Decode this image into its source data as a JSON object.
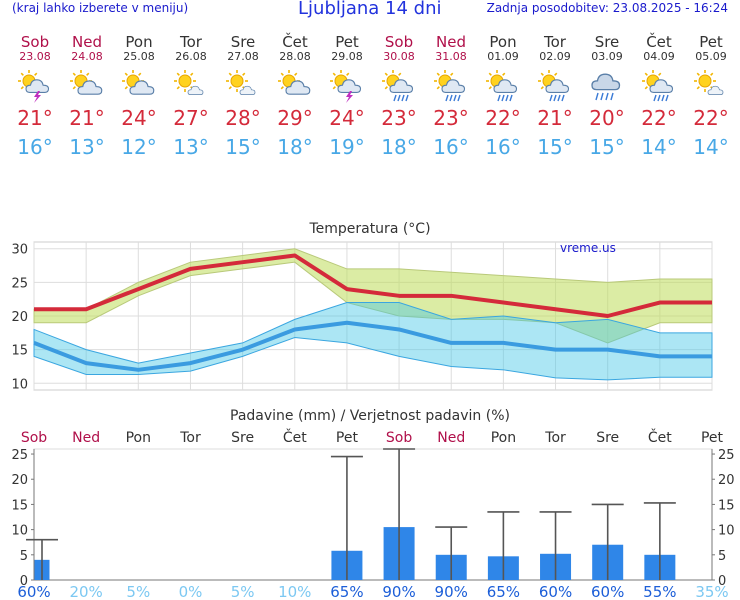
{
  "header": {
    "location_link": "(kraj lahko izberete v meniju)",
    "title": "Ljubljana 14 dni",
    "updated": "Zadnja posodobitev: 23.08.2025 - 16:24"
  },
  "days": [
    {
      "name": "Sob",
      "date": "23.08",
      "weekend": true,
      "icon": "sun-cloud-storm-icon",
      "tmax": "21°",
      "tmin": "16°"
    },
    {
      "name": "Ned",
      "date": "24.08",
      "weekend": true,
      "icon": "sun-cloud-icon",
      "tmax": "21°",
      "tmin": "13°"
    },
    {
      "name": "Pon",
      "date": "25.08",
      "weekend": false,
      "icon": "sun-cloud-icon",
      "tmax": "24°",
      "tmin": "12°"
    },
    {
      "name": "Tor",
      "date": "26.08",
      "weekend": false,
      "icon": "sun-cloud-small-icon",
      "tmax": "27°",
      "tmin": "13°"
    },
    {
      "name": "Sre",
      "date": "27.08",
      "weekend": false,
      "icon": "sun-cloud-small-icon",
      "tmax": "28°",
      "tmin": "15°"
    },
    {
      "name": "Čet",
      "date": "28.08",
      "weekend": false,
      "icon": "sun-cloud-icon",
      "tmax": "29°",
      "tmin": "18°"
    },
    {
      "name": "Pet",
      "date": "29.08",
      "weekend": false,
      "icon": "sun-cloud-storm-icon",
      "tmax": "24°",
      "tmin": "19°"
    },
    {
      "name": "Sob",
      "date": "30.08",
      "weekend": true,
      "icon": "sun-cloud-rain-icon",
      "tmax": "23°",
      "tmin": "18°"
    },
    {
      "name": "Ned",
      "date": "31.08",
      "weekend": true,
      "icon": "sun-cloud-rain-icon",
      "tmax": "23°",
      "tmin": "16°"
    },
    {
      "name": "Pon",
      "date": "01.09",
      "weekend": false,
      "icon": "sun-cloud-rain-icon",
      "tmax": "22°",
      "tmin": "16°"
    },
    {
      "name": "Tor",
      "date": "02.09",
      "weekend": false,
      "icon": "sun-cloud-rain-icon",
      "tmax": "21°",
      "tmin": "15°"
    },
    {
      "name": "Sre",
      "date": "03.09",
      "weekend": false,
      "icon": "cloud-rain-icon",
      "tmax": "20°",
      "tmin": "15°"
    },
    {
      "name": "Čet",
      "date": "04.09",
      "weekend": false,
      "icon": "sun-cloud-rain-icon",
      "tmax": "22°",
      "tmin": "14°"
    },
    {
      "name": "Pet",
      "date": "05.09",
      "weekend": false,
      "icon": "sun-cloud-small-icon",
      "tmax": "22°",
      "tmin": "14°"
    }
  ],
  "colors": {
    "max": "#d42a3a",
    "min": "#48a8e6",
    "bar": "#2f86e8",
    "weekend": "#b0104a"
  },
  "chart_data": [
    {
      "type": "line",
      "title": "Temperatura (°C)",
      "watermark": "vreme.us",
      "x": [
        0,
        1,
        2,
        3,
        4,
        5,
        6,
        7,
        8,
        9,
        10,
        11,
        12,
        13
      ],
      "ylim": [
        9,
        31
      ],
      "yticks": [
        10,
        15,
        20,
        25,
        30
      ],
      "grid": true,
      "series": [
        {
          "values": [
            21,
            21,
            24,
            27,
            28,
            29,
            24,
            23,
            23,
            22,
            21,
            20,
            22,
            22
          ]
        },
        {
          "values": [
            16,
            13,
            12,
            13,
            15,
            18,
            19,
            18,
            16,
            16,
            15,
            15,
            14,
            14
          ]
        }
      ],
      "max_band_hi": [
        21,
        21,
        25,
        28,
        29,
        30,
        27,
        27,
        26.5,
        26,
        25.5,
        25,
        25.5,
        25.5
      ],
      "max_band_lo": [
        19,
        19,
        23,
        26,
        27,
        28,
        22,
        20,
        19.5,
        19.5,
        19,
        16,
        19,
        19
      ],
      "min_band_hi": [
        18,
        15,
        13,
        14.5,
        16,
        19.5,
        22,
        22,
        19.5,
        20,
        19,
        19.5,
        17.5,
        17.5
      ],
      "min_band_lo": [
        14,
        11.3,
        11.3,
        11.8,
        14,
        16.8,
        16,
        14,
        12.5,
        12,
        10.8,
        10.5,
        10.9,
        10.9
      ]
    },
    {
      "type": "bar",
      "title": "Padavine (mm) / Verjetnost padavin (%)",
      "categories": [
        "Sob",
        "Ned",
        "Pon",
        "Tor",
        "Sre",
        "Čet",
        "Pet",
        "Sob",
        "Ned",
        "Pon",
        "Tor",
        "Sre",
        "Čet",
        "Pet"
      ],
      "weekend": [
        true,
        true,
        false,
        false,
        false,
        false,
        false,
        true,
        true,
        false,
        false,
        false,
        false,
        false
      ],
      "values": [
        4,
        0,
        0,
        0,
        0,
        0,
        5.8,
        10.5,
        5,
        4.7,
        5.2,
        7,
        5,
        0
      ],
      "whisker_high": [
        8,
        0,
        0,
        0,
        0,
        0,
        24.5,
        26,
        10.5,
        13.5,
        13.5,
        15,
        15.3,
        0
      ],
      "probability": [
        "60%",
        "20%",
        "5%",
        "0%",
        "5%",
        "10%",
        "65%",
        "90%",
        "90%",
        "65%",
        "60%",
        "60%",
        "55%",
        "35%"
      ],
      "probability_value": [
        60,
        20,
        5,
        0,
        5,
        10,
        65,
        90,
        90,
        65,
        60,
        60,
        55,
        35
      ],
      "ylim": [
        0,
        26
      ],
      "yticks": [
        0,
        5,
        10,
        15,
        20,
        25
      ]
    }
  ]
}
